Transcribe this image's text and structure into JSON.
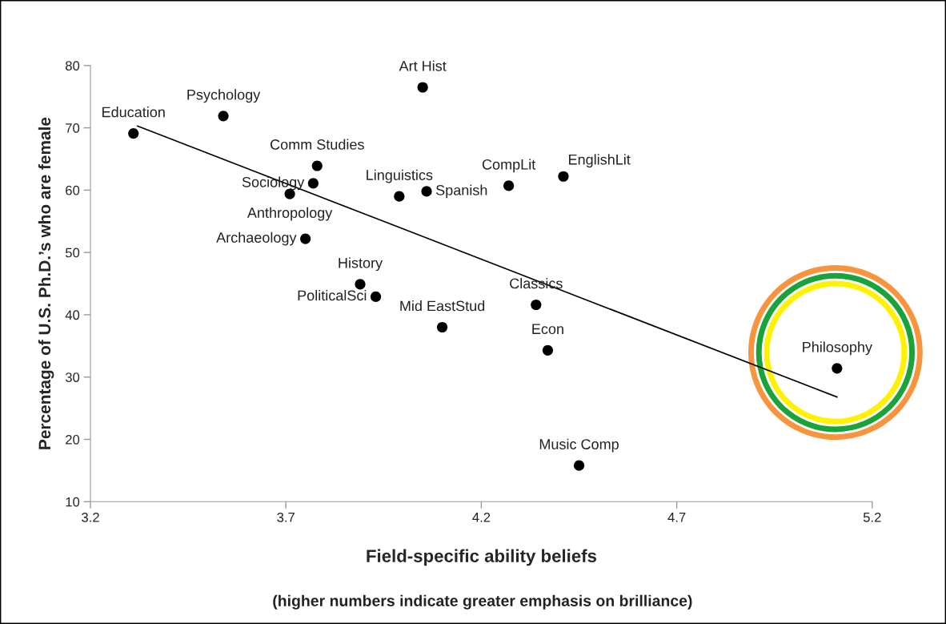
{
  "chart_data": {
    "type": "scatter",
    "xlabel": "Field-specific ability beliefs",
    "ylabel": "Percentage of U.S. Ph.D.’s who are female",
    "xlim": [
      3.2,
      5.2
    ],
    "xticks": [
      3.2,
      3.7,
      4.2,
      4.7,
      5.2
    ],
    "ylim": [
      10,
      80
    ],
    "yticks": [
      10,
      20,
      30,
      40,
      50,
      60,
      70,
      80
    ],
    "grid": false,
    "legend": false,
    "series": [
      {
        "marker": "circle",
        "color": "#000000",
        "x": [
          3.31,
          3.54,
          4.05,
          3.78,
          3.77,
          3.71,
          3.75,
          3.99,
          4.06,
          4.27,
          4.41,
          3.89,
          3.93,
          4.1,
          4.34,
          4.37,
          4.45,
          5.11
        ],
        "values": [
          69.1,
          71.9,
          76.5,
          63.9,
          61.1,
          59.4,
          52.2,
          59.0,
          59.8,
          60.7,
          62.2,
          44.9,
          42.9,
          38.0,
          41.6,
          34.3,
          15.8,
          31.4
        ]
      },
      {
        "type": "line",
        "color": "#000000",
        "x": [
          3.32,
          5.11
        ],
        "values": [
          70.3,
          26.8
        ]
      }
    ],
    "annotations": [
      {
        "text": "Education",
        "x": 3.31,
        "y": 69.1
      },
      {
        "text": "Psychology",
        "x": 3.54,
        "y": 71.9
      },
      {
        "text": "Art Hist",
        "x": 4.05,
        "y": 76.5
      },
      {
        "text": "Comm Studies",
        "x": 3.78,
        "y": 63.9
      },
      {
        "text": "Sociology",
        "x": 3.77,
        "y": 61.1
      },
      {
        "text": "Anthropology",
        "x": 3.71,
        "y": 59.4
      },
      {
        "text": "Archaeology",
        "x": 3.75,
        "y": 52.2
      },
      {
        "text": "Linguistics",
        "x": 3.99,
        "y": 59.0
      },
      {
        "text": "Spanish",
        "x": 4.06,
        "y": 59.8
      },
      {
        "text": "CompLit",
        "x": 4.27,
        "y": 60.7
      },
      {
        "text": "EnglishLit",
        "x": 4.41,
        "y": 62.2
      },
      {
        "text": "History",
        "x": 3.89,
        "y": 44.9
      },
      {
        "text": "PoliticalSci",
        "x": 3.93,
        "y": 42.9
      },
      {
        "text": "Mid EastStud",
        "x": 4.1,
        "y": 38.0
      },
      {
        "text": "Classics",
        "x": 4.34,
        "y": 41.6
      },
      {
        "text": "Econ",
        "x": 4.37,
        "y": 34.3
      },
      {
        "text": "Music Comp",
        "x": 4.45,
        "y": 15.8
      },
      {
        "text": "Philosophy",
        "x": 5.11,
        "y": 31.4
      },
      "(higher numbers indicate greater emphasis on brilliance)"
    ]
  }
}
